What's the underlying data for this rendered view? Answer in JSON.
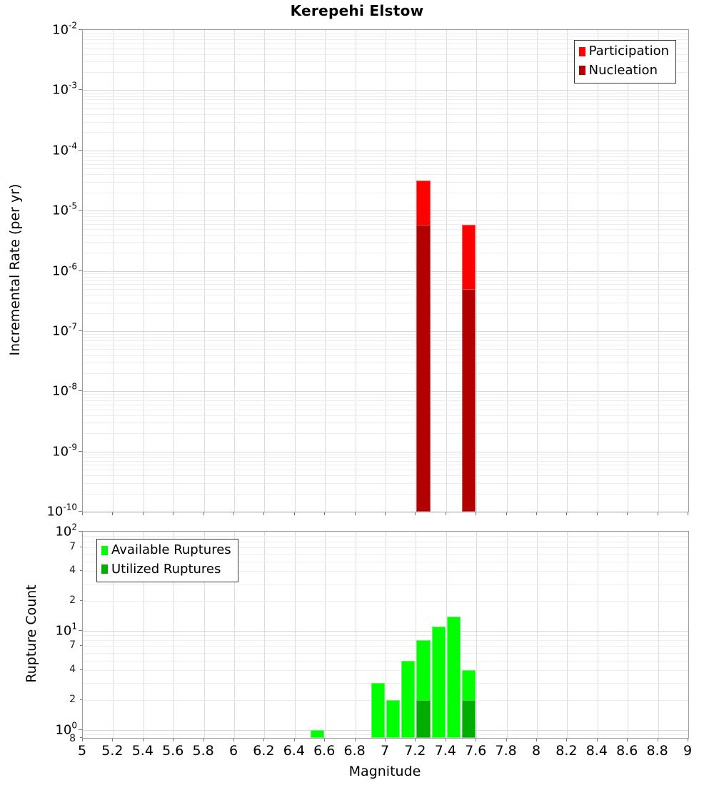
{
  "title": "Kerepehi Elstow",
  "xlabel": "Magnitude",
  "log_base_label": "10",
  "colors": {
    "participation": "#FF0000",
    "nucleation": "#B20000",
    "available": "#00FF00",
    "utilized": "#00AD00",
    "grid_minor": "#EDEDED",
    "grid_major": "#D8D8D8",
    "panel_border": "#9A9A9A"
  },
  "xticks": [
    {
      "label": "5",
      "value": 5.0
    },
    {
      "label": "5.2",
      "value": 5.2
    },
    {
      "label": "5.4",
      "value": 5.4
    },
    {
      "label": "5.6",
      "value": 5.6
    },
    {
      "label": "5.8",
      "value": 5.8
    },
    {
      "label": "6",
      "value": 6.0
    },
    {
      "label": "6.2",
      "value": 6.2
    },
    {
      "label": "6.4",
      "value": 6.4
    },
    {
      "label": "6.6",
      "value": 6.6
    },
    {
      "label": "6.8",
      "value": 6.8
    },
    {
      "label": "7",
      "value": 7.0
    },
    {
      "label": "7.2",
      "value": 7.2
    },
    {
      "label": "7.4",
      "value": 7.4
    },
    {
      "label": "7.6",
      "value": 7.6
    },
    {
      "label": "7.8",
      "value": 7.8
    },
    {
      "label": "8",
      "value": 8.0
    },
    {
      "label": "8.2",
      "value": 8.2
    },
    {
      "label": "8.4",
      "value": 8.4
    },
    {
      "label": "8.6",
      "value": 8.6
    },
    {
      "label": "8.8",
      "value": 8.8
    },
    {
      "label": "9",
      "value": 9.0
    }
  ],
  "chart_data": [
    {
      "type": "bar",
      "panel": "incremental-rate",
      "title": "Kerepehi Elstow",
      "xlabel": "Magnitude",
      "ylabel": "Incremental Rate (per yr)",
      "xscale": "linear",
      "yscale": "log",
      "xlim": [
        5,
        9
      ],
      "ylim": [
        1e-10,
        0.01
      ],
      "grid": true,
      "bar_bin_width": 0.1,
      "legend_position": "top-right",
      "ytick_exponents": [
        -2,
        -3,
        -4,
        -5,
        -6,
        -7,
        -8,
        -9,
        -10
      ],
      "series": [
        {
          "name": "Participation",
          "color": "#FF0000",
          "bars": [
            {
              "bin_start": 7.2,
              "value": 3.2e-05
            },
            {
              "bin_start": 7.5,
              "value": 5.8e-06
            }
          ]
        },
        {
          "name": "Nucleation",
          "color": "#B20000",
          "bars": [
            {
              "bin_start": 7.2,
              "value": 5.8e-06
            },
            {
              "bin_start": 7.5,
              "value": 5e-07
            }
          ]
        }
      ]
    },
    {
      "type": "bar",
      "panel": "rupture-count",
      "xlabel": "Magnitude",
      "ylabel": "Rupture Count",
      "xscale": "linear",
      "yscale": "log",
      "xlim": [
        5,
        9
      ],
      "ylim": [
        0.83,
        100
      ],
      "grid": true,
      "bar_bin_width": 0.1,
      "legend_position": "top-left",
      "ytick_exponents": [
        2,
        1,
        0
      ],
      "ytick_minor_labeled": [
        {
          "label": "7",
          "value": 70
        },
        {
          "label": "4",
          "value": 40
        },
        {
          "label": "2",
          "value": 20
        },
        {
          "label": "7",
          "value": 7
        },
        {
          "label": "4",
          "value": 4
        },
        {
          "label": "2",
          "value": 2
        },
        {
          "label": "8",
          "value": 0.8
        }
      ],
      "series": [
        {
          "name": "Available Ruptures",
          "color": "#00FF00",
          "bars": [
            {
              "bin_start": 6.5,
              "value": 1
            },
            {
              "bin_start": 6.9,
              "value": 3
            },
            {
              "bin_start": 7.0,
              "value": 2
            },
            {
              "bin_start": 7.1,
              "value": 5
            },
            {
              "bin_start": 7.2,
              "value": 8
            },
            {
              "bin_start": 7.3,
              "value": 11
            },
            {
              "bin_start": 7.4,
              "value": 14
            },
            {
              "bin_start": 7.5,
              "value": 4
            }
          ]
        },
        {
          "name": "Utilized Ruptures",
          "color": "#00AD00",
          "bars": [
            {
              "bin_start": 7.2,
              "value": 2
            },
            {
              "bin_start": 7.5,
              "value": 2
            }
          ]
        }
      ]
    }
  ]
}
